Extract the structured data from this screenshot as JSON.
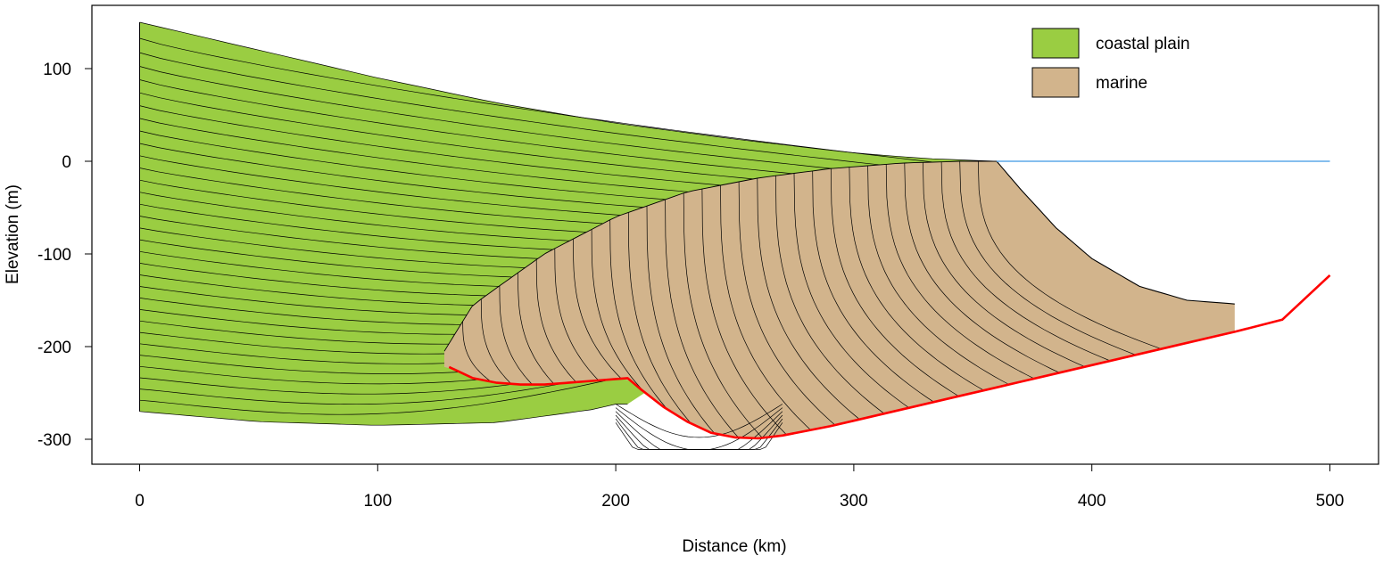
{
  "chart_data": {
    "type": "area",
    "title": "",
    "xlabel": "Distance (km)",
    "ylabel": "Elevation (m)",
    "xlim": [
      -20,
      520
    ],
    "ylim": [
      -328,
      165
    ],
    "x_ticks": [
      0,
      100,
      200,
      300,
      400,
      500
    ],
    "y_ticks": [
      100,
      0,
      -100,
      -200,
      -300
    ],
    "x_tick_labels": [
      "0",
      "100",
      "200",
      "300",
      "400",
      "500"
    ],
    "y_tick_labels": [
      "100",
      "0",
      "-100",
      "-200",
      "-300"
    ],
    "grid": false,
    "legend_position": "top-right",
    "legend": [
      {
        "label": "coastal plain",
        "color": "#9ACD42"
      },
      {
        "label": "marine",
        "color": "#D2B48C"
      }
    ],
    "colors": {
      "coastal_plain": "#9ACD42",
      "marine": "#D2B48C",
      "sea_level": "#5DA9E9",
      "substrate": "#FF0000",
      "layer_line": "#000000"
    },
    "sea_level": {
      "x": [
        360,
        500
      ],
      "y": [
        0,
        0
      ]
    },
    "substrate_surface": {
      "x": [
        130,
        140,
        150,
        160,
        170,
        180,
        190,
        200,
        205,
        210,
        220,
        230,
        240,
        250,
        260,
        270,
        280,
        290,
        300,
        320,
        340,
        360,
        380,
        400,
        420,
        440,
        460,
        480,
        500
      ],
      "y": [
        -222,
        -234,
        -239,
        -241,
        -241,
        -239,
        -237,
        -235,
        -234,
        -245,
        -265,
        -281,
        -293,
        -298,
        -299,
        -296,
        -291,
        -286,
        -280,
        -268,
        -256,
        -244,
        -232,
        -220,
        -208,
        -196,
        -184,
        -171,
        -123
      ]
    },
    "coastal_plain_wedge": {
      "top_surface": {
        "x": [
          0,
          50,
          100,
          150,
          200,
          250,
          300,
          330,
          360
        ],
        "y": [
          150,
          120,
          90,
          63,
          41,
          24,
          9,
          3,
          0
        ]
      },
      "base_surface": {
        "x": [
          0,
          50,
          100,
          150,
          190,
          200
        ],
        "y": [
          -270,
          -281,
          -285,
          -282,
          -268,
          -262
        ]
      },
      "layer_count": 32
    },
    "marine_wedge": {
      "top_surface": {
        "x": [
          128,
          140,
          170,
          200,
          230,
          260,
          290,
          320,
          345,
          360
        ],
        "y": [
          -205,
          -155,
          -100,
          -60,
          -33,
          -18,
          -8,
          -2,
          0,
          0
        ]
      },
      "slope_surface": {
        "x": [
          360,
          370,
          385,
          400,
          420,
          440,
          460
        ],
        "y": [
          0,
          -30,
          -72,
          -105,
          -135,
          -150,
          -154
        ]
      },
      "layer_count": 30
    }
  }
}
